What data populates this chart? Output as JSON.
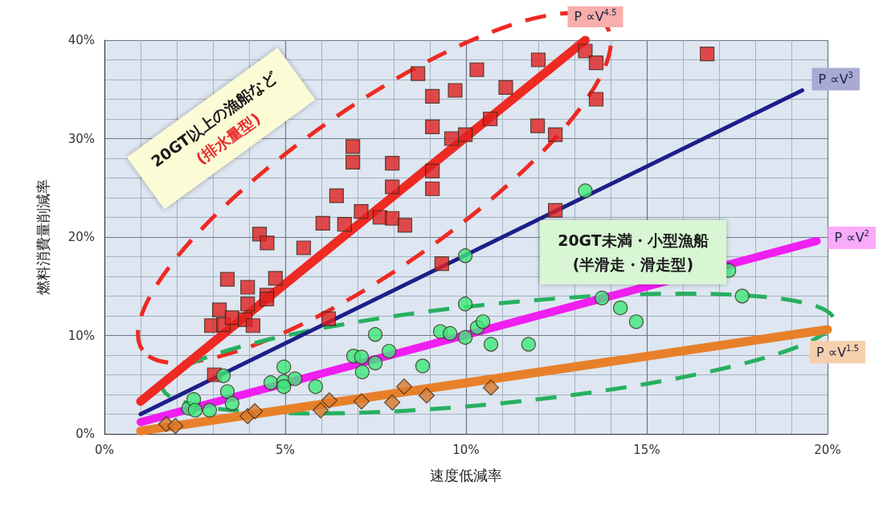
{
  "chart_data": {
    "type": "scatter",
    "xlabel": "速度低減率",
    "ylabel": "燃料消費量削減率",
    "xlim": [
      0,
      20
    ],
    "ylim": [
      0,
      40
    ],
    "xticks": [
      {
        "value": 0,
        "label": "0%"
      },
      {
        "value": 5,
        "label": "5%"
      },
      {
        "value": 10,
        "label": "10%"
      },
      {
        "value": 15,
        "label": "15%"
      },
      {
        "value": 20,
        "label": "20%"
      }
    ],
    "yticks": [
      {
        "value": 0,
        "label": "0%"
      },
      {
        "value": 10,
        "label": "10%"
      },
      {
        "value": 20,
        "label": "20%"
      },
      {
        "value": 30,
        "label": "30%"
      },
      {
        "value": 40,
        "label": "40%"
      }
    ],
    "grid": true,
    "legend": false,
    "annotations": [
      "20GT以上の漁船など",
      "(排水量型)",
      "20GT未満・小型漁船",
      "(半滑走・滑走型)"
    ],
    "series": [
      {
        "type": "line",
        "name": "P ∝V$^{4.5}$",
        "color": "#ee2a22",
        "marker": "none",
        "x": [
          1,
          13.3
        ],
        "values": [
          3.3,
          40
        ]
      },
      {
        "type": "line",
        "name": "P ∝V$^{3}$",
        "color": "#1c1f8a",
        "marker": "none",
        "x": [
          1,
          19.3
        ],
        "values": [
          2,
          34.9
        ]
      },
      {
        "type": "line",
        "name": "P ∝V$^{2}$",
        "color": "#f01ef0",
        "marker": "none",
        "x": [
          1,
          19.7
        ],
        "values": [
          1.2,
          19.6
        ]
      },
      {
        "type": "line",
        "name": "P ∝V$^{1.5}$",
        "color": "#e8802a",
        "marker": "none",
        "x": [
          1,
          20
        ],
        "values": [
          0.3,
          10.6
        ]
      },
      {
        "color": "#e02020",
        "marker": "square",
        "x": [
          2.96,
          3.18,
          3.29,
          3.4,
          3.53,
          3.89,
          3.96,
          3.96,
          4.11,
          4.29,
          4.49,
          4.49,
          4.5,
          4.73,
          5.51,
          6.04,
          6.2,
          6.42,
          6.64,
          6.87,
          6.87,
          7.1,
          7.62,
          7.96,
          7.96,
          7.96,
          8.31,
          8.67,
          9.07,
          9.07,
          9.07,
          9.07,
          9.33,
          9.6,
          9.7,
          9.98,
          10.3,
          10.67,
          11.1,
          11.98,
          12.0,
          12.47,
          12.47,
          13.3,
          13.6,
          13.6,
          16.67,
          3.04
        ],
        "values": [
          11.0,
          12.6,
          11.1,
          15.7,
          11.8,
          11.6,
          14.9,
          13.2,
          11.0,
          20.3,
          14.1,
          13.7,
          19.4,
          15.8,
          18.9,
          21.4,
          11.7,
          24.2,
          21.3,
          29.2,
          27.6,
          22.6,
          22.0,
          21.9,
          27.5,
          25.1,
          21.2,
          36.6,
          34.3,
          31.2,
          26.7,
          24.9,
          17.3,
          30.0,
          34.9,
          30.4,
          37.0,
          32.0,
          35.2,
          31.3,
          38.0,
          30.4,
          22.7,
          38.9,
          37.7,
          34.0,
          38.6,
          6.0
        ]
      },
      {
        "color": "#3ee87a",
        "marker": "circle",
        "x": [
          2.33,
          2.47,
          2.51,
          2.91,
          3.29,
          3.4,
          3.53,
          4.6,
          4.96,
          4.96,
          4.96,
          5.27,
          5.84,
          6.89,
          7.11,
          7.13,
          7.49,
          7.49,
          7.87,
          8.8,
          9.29,
          9.56,
          9.98,
          9.98,
          9.98,
          10.31,
          10.47,
          10.69,
          11.73,
          13.3,
          13.76,
          14.27,
          14.71,
          17.27,
          17.64
        ],
        "values": [
          2.6,
          3.5,
          2.4,
          2.4,
          5.9,
          4.3,
          3.1,
          5.2,
          6.8,
          5.3,
          4.8,
          5.6,
          4.8,
          7.9,
          7.8,
          6.3,
          10.1,
          7.2,
          8.4,
          6.9,
          10.4,
          10.2,
          18.1,
          13.2,
          9.8,
          10.8,
          11.4,
          9.1,
          9.1,
          24.7,
          13.8,
          12.8,
          11.4,
          16.6,
          14.0
        ]
      },
      {
        "color": "#d9782a",
        "marker": "diamond",
        "x": [
          1.71,
          1.96,
          3.96,
          4.16,
          5.98,
          6.22,
          7.11,
          7.96,
          8.29,
          8.91,
          10.69
        ],
        "values": [
          1.0,
          0.8,
          1.8,
          2.3,
          2.4,
          3.4,
          3.3,
          3.2,
          4.8,
          3.9,
          4.7
        ]
      }
    ]
  }
}
